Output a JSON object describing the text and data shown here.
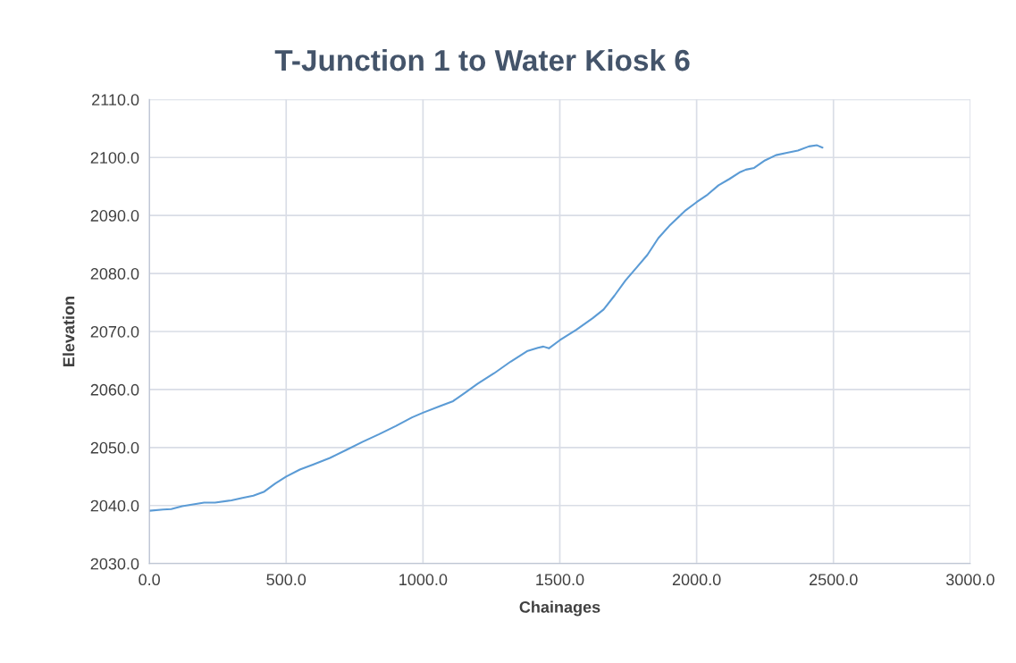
{
  "chart_data": {
    "type": "line",
    "title": "T-Junction 1 to Water Kiosk 6",
    "xlabel": "Chainages",
    "ylabel": "Elevation",
    "xlim": [
      0,
      3000
    ],
    "ylim": [
      2030,
      2110
    ],
    "xticks": [
      {
        "value": 0,
        "label": "0.0"
      },
      {
        "value": 500,
        "label": "500.0"
      },
      {
        "value": 1000,
        "label": "1000.0"
      },
      {
        "value": 1500,
        "label": "1500.0"
      },
      {
        "value": 2000,
        "label": "2000.0"
      },
      {
        "value": 2500,
        "label": "2500.0"
      },
      {
        "value": 3000,
        "label": "3000.0"
      }
    ],
    "yticks": [
      {
        "value": 2030,
        "label": "2030.0"
      },
      {
        "value": 2040,
        "label": "2040.0"
      },
      {
        "value": 2050,
        "label": "2050.0"
      },
      {
        "value": 2060,
        "label": "2060.0"
      },
      {
        "value": 2070,
        "label": "2070.0"
      },
      {
        "value": 2080,
        "label": "2080.0"
      },
      {
        "value": 2090,
        "label": "2090.0"
      },
      {
        "value": 2100,
        "label": "2100.0"
      },
      {
        "value": 2110,
        "label": "2110.0"
      }
    ],
    "grid": true,
    "marker": "none",
    "line_style": "solid",
    "x": [
      0,
      50,
      80,
      120,
      160,
      200,
      240,
      300,
      340,
      380,
      420,
      460,
      500,
      550,
      600,
      660,
      720,
      780,
      840,
      900,
      960,
      1000,
      1060,
      1110,
      1150,
      1200,
      1260,
      1320,
      1380,
      1420,
      1440,
      1460,
      1500,
      1560,
      1620,
      1660,
      1700,
      1740,
      1780,
      1820,
      1860,
      1900,
      1960,
      2000,
      2040,
      2080,
      2120,
      2160,
      2180,
      2210,
      2250,
      2290,
      2330,
      2370,
      2410,
      2440,
      2460
    ],
    "series": [
      {
        "color": "#5b9bd5",
        "values": [
          2039.1,
          2039.3,
          2039.4,
          2039.9,
          2040.2,
          2040.5,
          2040.5,
          2040.9,
          2041.3,
          2041.7,
          2042.4,
          2043.8,
          2045.0,
          2046.2,
          2047.1,
          2048.2,
          2049.6,
          2051.0,
          2052.3,
          2053.7,
          2055.2,
          2056.0,
          2057.1,
          2058.0,
          2059.3,
          2061.0,
          2062.8,
          2064.8,
          2066.6,
          2067.2,
          2067.4,
          2067.1,
          2068.5,
          2070.3,
          2072.3,
          2073.8,
          2076.2,
          2078.8,
          2081.0,
          2083.2,
          2086.1,
          2088.2,
          2090.9,
          2092.3,
          2093.6,
          2095.2,
          2096.3,
          2097.5,
          2097.9,
          2098.2,
          2099.5,
          2100.4,
          2100.8,
          2101.2,
          2101.9,
          2102.1,
          2101.7
        ]
      }
    ]
  }
}
